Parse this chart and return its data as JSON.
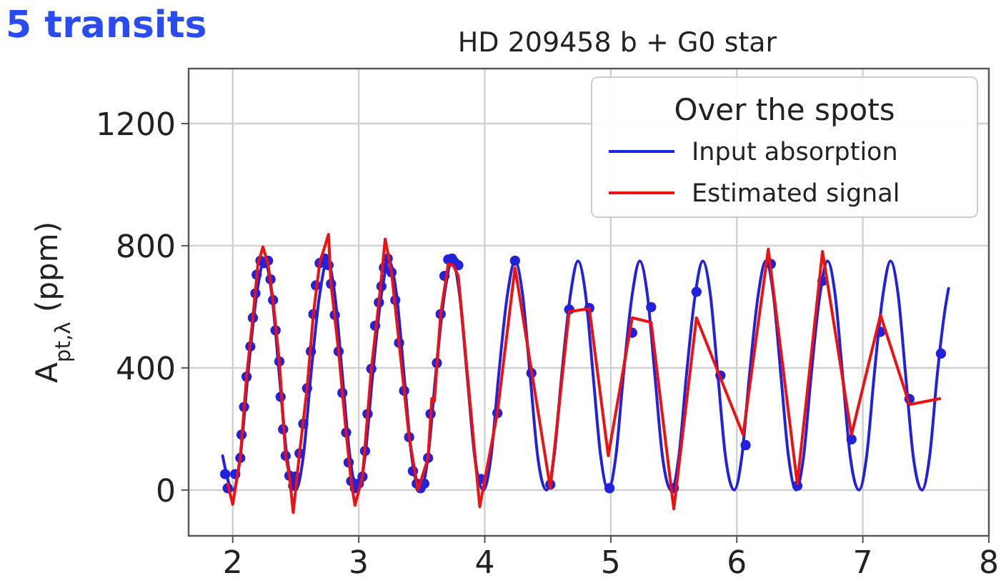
{
  "chart_data": {
    "type": "line",
    "title": "HD 209458 b + G0 star",
    "ylabel": "A$_{pt,λ}$ (ppm)",
    "legend_title": "Over the spots",
    "legend": "top right",
    "grid": true,
    "annotations": [
      "5 transits"
    ],
    "xlim": [
      1.65,
      8.0
    ],
    "xticks": [
      2,
      3,
      4,
      5,
      6,
      7,
      8
    ],
    "ylim": [
      -150,
      1380
    ],
    "yticks": [
      0,
      400,
      800,
      1200
    ],
    "series": [
      {
        "name": "Input absorption",
        "color": "#2222dd",
        "x": [
          1.92,
          2.0,
          2.06,
          2.12,
          2.19,
          2.25,
          2.31,
          2.37,
          2.43,
          2.5,
          2.56,
          2.62,
          2.69,
          2.75,
          2.81,
          2.87,
          2.93,
          2.99,
          3.05,
          3.11,
          3.18,
          3.24,
          3.3,
          3.36,
          3.42,
          3.49,
          3.55,
          3.61,
          3.68,
          3.74,
          3.8,
          3.86,
          3.92,
          3.99,
          4.05,
          4.11,
          4.18,
          4.24,
          4.3,
          4.36,
          4.42,
          4.49,
          4.55,
          4.61,
          4.68,
          4.74,
          4.8,
          4.86,
          4.92,
          4.98,
          5.04,
          5.1,
          5.17,
          5.23,
          5.29,
          5.35,
          5.41,
          5.48,
          5.54,
          5.6,
          5.67,
          5.73,
          5.79,
          5.85,
          5.91,
          5.98,
          6.04,
          6.1,
          6.17,
          6.23,
          6.29,
          6.35,
          6.41,
          6.47,
          6.53,
          6.59,
          6.66,
          6.72,
          6.78,
          6.84,
          6.9,
          6.97,
          7.03,
          7.09,
          7.16,
          7.22,
          7.28,
          7.34,
          7.4,
          7.47,
          7.53,
          7.59,
          7.65,
          7.68
        ],
        "values": [
          112,
          0,
          110,
          375,
          640,
          750,
          640,
          375,
          110,
          0,
          110,
          375,
          640,
          750,
          640,
          375,
          110,
          0,
          110,
          375,
          640,
          750,
          640,
          375,
          110,
          0,
          110,
          375,
          640,
          750,
          640,
          375,
          110,
          0,
          110,
          375,
          640,
          750,
          640,
          375,
          110,
          0,
          110,
          375,
          640,
          750,
          640,
          375,
          110,
          0,
          110,
          375,
          640,
          750,
          640,
          375,
          110,
          0,
          110,
          375,
          640,
          750,
          640,
          375,
          110,
          0,
          110,
          375,
          640,
          750,
          640,
          375,
          110,
          0,
          110,
          375,
          640,
          750,
          640,
          375,
          110,
          0,
          110,
          375,
          640,
          750,
          640,
          375,
          110,
          0,
          110,
          375,
          585,
          660
        ]
      },
      {
        "type": "scatter",
        "color": "#2222dd",
        "marker": "circle",
        "x": [
          1.94,
          1.96,
          2.02,
          2.06,
          2.07,
          2.09,
          2.11,
          2.14,
          2.16,
          2.18,
          2.19,
          2.22,
          2.25,
          2.28,
          2.3,
          2.32,
          2.34,
          2.37,
          2.38,
          2.4,
          2.42,
          2.45,
          2.48,
          2.5,
          2.53,
          2.56,
          2.59,
          2.62,
          2.64,
          2.66,
          2.69,
          2.73,
          2.76,
          2.78,
          2.81,
          2.84,
          2.87,
          2.9,
          2.92,
          2.94,
          2.97,
          3.0,
          3.03,
          3.05,
          3.07,
          3.1,
          3.13,
          3.16,
          3.18,
          3.2,
          3.23,
          3.26,
          3.29,
          3.32,
          3.36,
          3.4,
          3.43,
          3.46,
          3.49,
          3.52,
          3.55,
          3.57,
          3.62,
          3.65,
          3.68,
          3.71,
          3.74,
          3.76,
          3.79,
          3.97,
          4.1,
          4.24,
          4.37,
          4.52,
          4.67,
          4.83,
          4.99,
          5.17,
          5.32,
          5.5,
          5.68,
          5.87,
          6.07,
          6.27,
          6.48,
          6.68,
          6.91,
          7.14,
          7.37,
          7.62
        ],
        "values": [
          52,
          6,
          52,
          105,
          181,
          272,
          371,
          470,
          564,
          644,
          705,
          751,
          743,
          751,
          690,
          622,
          523,
          421,
          305,
          199,
          112,
          47,
          14,
          44,
          120,
          217,
          333,
          454,
          576,
          670,
          743,
          758,
          736,
          675,
          573,
          454,
          318,
          188,
          90,
          29,
          6,
          21,
          44,
          128,
          249,
          397,
          538,
          614,
          667,
          728,
          758,
          713,
          622,
          482,
          325,
          173,
          62,
          21,
          6,
          21,
          105,
          249,
          416,
          576,
          701,
          755,
          758,
          746,
          736,
          36,
          252,
          751,
          383,
          18,
          591,
          596,
          6,
          515,
          599,
          6,
          649,
          375,
          147,
          740,
          14,
          685,
          166,
          518,
          298,
          447
        ]
      },
      {
        "name": "Estimated signal",
        "color": "#ee1111",
        "x": [
          1.96,
          2.0,
          2.06,
          2.11,
          2.16,
          2.2,
          2.24,
          2.28,
          2.32,
          2.37,
          2.42,
          2.45,
          2.48,
          2.53,
          2.59,
          2.64,
          2.69,
          2.76,
          2.78,
          2.84,
          2.9,
          2.94,
          2.97,
          3.03,
          3.1,
          3.16,
          3.21,
          3.26,
          3.32,
          3.4,
          3.47,
          3.55,
          3.58,
          3.6,
          3.65,
          3.71,
          3.75,
          3.79,
          3.96,
          4.1,
          4.24,
          4.37,
          4.52,
          4.67,
          4.83,
          4.98,
          5.17,
          5.32,
          5.5,
          5.68,
          6.05,
          6.25,
          6.48,
          6.68,
          6.91,
          7.14,
          7.37,
          7.61
        ],
        "values": [
          20,
          -47,
          105,
          371,
          564,
          740,
          796,
          740,
          622,
          421,
          112,
          47,
          -74,
          120,
          333,
          576,
          743,
          837,
          675,
          454,
          188,
          29,
          -50,
          44,
          397,
          614,
          822,
          713,
          482,
          173,
          0,
          105,
          300,
          290,
          576,
          740,
          736,
          700,
          -55,
          252,
          728,
          394,
          6,
          584,
          594,
          112,
          564,
          549,
          -62,
          564,
          181,
          789,
          21,
          781,
          181,
          573,
          280,
          299
        ]
      }
    ]
  }
}
